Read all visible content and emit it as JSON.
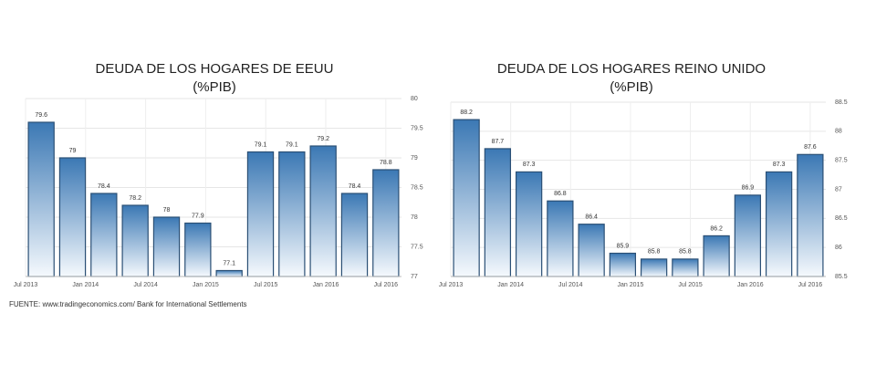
{
  "chart_data": [
    {
      "type": "bar",
      "title": "DEUDA DE LOS HOGARES DE EEUU",
      "subtitle": "(%PIB)",
      "xtick_labels": [
        "Jul 2013",
        "Jan 2014",
        "Jul 2014",
        "Jan 2015",
        "Jul 2015",
        "Jan 2016",
        "Jul 2016"
      ],
      "values": [
        79.6,
        79,
        78.4,
        78.2,
        78,
        77.9,
        77.1,
        79.1,
        79.1,
        79.2,
        78.4,
        78.8
      ],
      "color": "#3b78b4",
      "ylim": [
        77,
        80
      ],
      "yticks": [
        77,
        77.5,
        78,
        78.5,
        79,
        79.5,
        80
      ],
      "grid": true
    },
    {
      "type": "bar",
      "title": "DEUDA DE LOS HOGARES REINO UNIDO",
      "subtitle": "(%PIB)",
      "xtick_labels": [
        "Jul 2013",
        "Jan 2014",
        "Jul 2014",
        "Jan 2015",
        "Jul 2015",
        "Jan 2016",
        "Jul 2016"
      ],
      "values": [
        88.2,
        87.7,
        87.3,
        86.8,
        86.4,
        85.9,
        85.8,
        85.8,
        86.2,
        86.9,
        87.3,
        87.6
      ],
      "color": "#3b78b4",
      "ylim": [
        85.5,
        88.5
      ],
      "yticks": [
        85.5,
        86,
        86.5,
        87,
        87.5,
        88,
        88.5
      ],
      "grid": true
    }
  ],
  "source": "FUENTE: www.tradingeconomics.com/ Bank for International Settlements"
}
